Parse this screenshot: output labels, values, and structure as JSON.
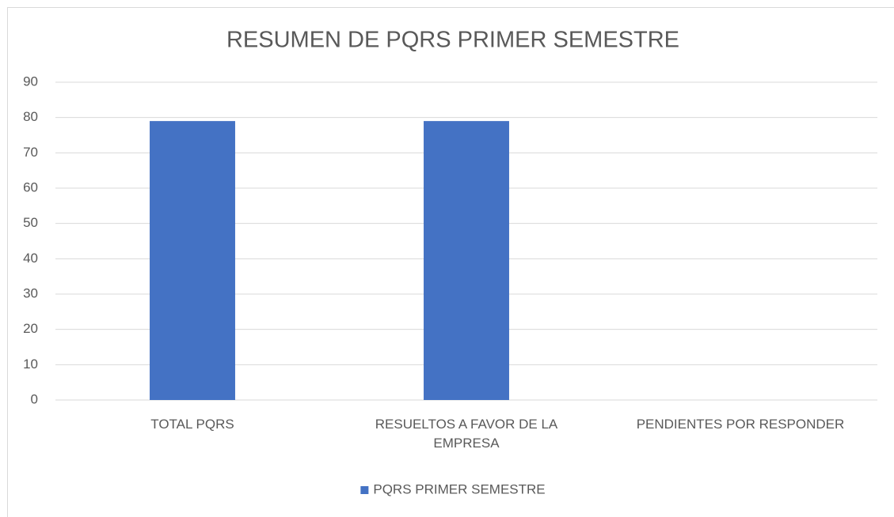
{
  "chart_data": {
    "type": "bar",
    "title": "RESUMEN DE PQRS PRIMER SEMESTRE",
    "categories": [
      "TOTAL PQRS",
      "RESUELTOS A FAVOR DE LA EMPRESA",
      "PENDIENTES POR RESPONDER"
    ],
    "series": [
      {
        "name": "PQRS PRIMER SEMESTRE",
        "color": "#4472c4",
        "values": [
          79,
          79,
          0
        ]
      }
    ],
    "ylim": [
      0,
      90
    ],
    "yticks": [
      0,
      10,
      20,
      30,
      40,
      50,
      60,
      70,
      80,
      90
    ],
    "grid": true,
    "legend": "bottom"
  }
}
